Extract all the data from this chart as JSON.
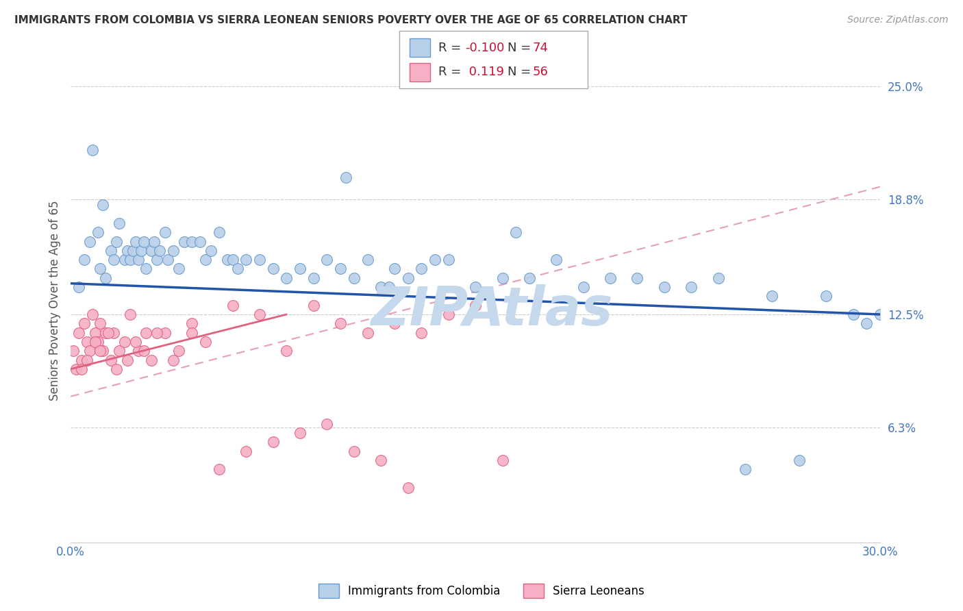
{
  "title": "IMMIGRANTS FROM COLOMBIA VS SIERRA LEONEAN SENIORS POVERTY OVER THE AGE OF 65 CORRELATION CHART",
  "source": "Source: ZipAtlas.com",
  "ylabel": "Seniors Poverty Over the Age of 65",
  "xlim": [
    0.0,
    30.0
  ],
  "ylim": [
    0.0,
    26.5
  ],
  "yticks": [
    6.3,
    12.5,
    18.8,
    25.0
  ],
  "ytick_labels": [
    "6.3%",
    "12.5%",
    "18.8%",
    "25.0%"
  ],
  "colombia_color": "#b8d0e8",
  "colombia_edge": "#6699cc",
  "sierraleone_color": "#f5b0c5",
  "sierraleone_edge": "#e06080",
  "colombia_R": -0.1,
  "colombia_N": 74,
  "sierraleone_R": 0.119,
  "sierraleone_N": 56,
  "trend_colombia_color": "#2255aa",
  "trend_sierraleone_solid_color": "#e06080",
  "trend_sierraleone_dash_color": "#e8a0b0",
  "watermark": "ZIPAtlas",
  "watermark_color": "#c5d8ec",
  "colombia_x": [
    0.3,
    0.5,
    0.7,
    0.8,
    1.0,
    1.1,
    1.2,
    1.3,
    1.5,
    1.6,
    1.7,
    1.8,
    2.0,
    2.1,
    2.2,
    2.3,
    2.4,
    2.5,
    2.6,
    2.7,
    2.8,
    3.0,
    3.1,
    3.2,
    3.3,
    3.5,
    3.6,
    3.8,
    4.0,
    4.2,
    4.5,
    4.8,
    5.0,
    5.2,
    5.5,
    5.8,
    6.0,
    6.2,
    6.5,
    7.0,
    7.5,
    8.0,
    8.5,
    9.0,
    9.5,
    10.0,
    10.5,
    11.0,
    11.5,
    12.0,
    12.5,
    13.0,
    14.0,
    15.0,
    16.0,
    17.0,
    18.0,
    19.0,
    20.0,
    22.0,
    24.0,
    25.0,
    27.0,
    29.0,
    30.0,
    29.5,
    28.0,
    26.0,
    23.0,
    21.0,
    16.5,
    13.5,
    11.8,
    10.2
  ],
  "colombia_y": [
    14.0,
    15.5,
    16.5,
    21.5,
    17.0,
    15.0,
    18.5,
    14.5,
    16.0,
    15.5,
    16.5,
    17.5,
    15.5,
    16.0,
    15.5,
    16.0,
    16.5,
    15.5,
    16.0,
    16.5,
    15.0,
    16.0,
    16.5,
    15.5,
    16.0,
    17.0,
    15.5,
    16.0,
    15.0,
    16.5,
    16.5,
    16.5,
    15.5,
    16.0,
    17.0,
    15.5,
    15.5,
    15.0,
    15.5,
    15.5,
    15.0,
    14.5,
    15.0,
    14.5,
    15.5,
    15.0,
    14.5,
    15.5,
    14.0,
    15.0,
    14.5,
    15.0,
    15.5,
    14.0,
    14.5,
    14.5,
    15.5,
    14.0,
    14.5,
    14.0,
    14.5,
    4.0,
    4.5,
    12.5,
    12.5,
    12.0,
    13.5,
    13.5,
    14.0,
    14.5,
    17.0,
    15.5,
    14.0,
    20.0
  ],
  "sierraleone_x": [
    0.1,
    0.2,
    0.3,
    0.4,
    0.5,
    0.6,
    0.7,
    0.8,
    0.9,
    1.0,
    1.1,
    1.2,
    1.3,
    1.5,
    1.6,
    1.8,
    2.0,
    2.2,
    2.5,
    2.8,
    3.0,
    3.5,
    4.0,
    4.5,
    5.0,
    6.0,
    7.0,
    8.0,
    9.0,
    10.0,
    11.0,
    12.0,
    13.0,
    14.0,
    15.0,
    16.0,
    0.4,
    0.6,
    0.9,
    1.1,
    1.4,
    1.7,
    2.1,
    2.4,
    2.7,
    3.2,
    3.8,
    4.5,
    5.5,
    6.5,
    7.5,
    8.5,
    9.5,
    10.5,
    11.5,
    12.5
  ],
  "sierraleone_y": [
    10.5,
    9.5,
    11.5,
    10.0,
    12.0,
    11.0,
    10.5,
    12.5,
    11.5,
    11.0,
    12.0,
    10.5,
    11.5,
    10.0,
    11.5,
    10.5,
    11.0,
    12.5,
    10.5,
    11.5,
    10.0,
    11.5,
    10.5,
    12.0,
    11.0,
    13.0,
    12.5,
    10.5,
    13.0,
    12.0,
    11.5,
    12.0,
    11.5,
    12.5,
    13.0,
    4.5,
    9.5,
    10.0,
    11.0,
    10.5,
    11.5,
    9.5,
    10.0,
    11.0,
    10.5,
    11.5,
    10.0,
    11.5,
    4.0,
    5.0,
    5.5,
    6.0,
    6.5,
    5.0,
    4.5,
    3.0
  ]
}
